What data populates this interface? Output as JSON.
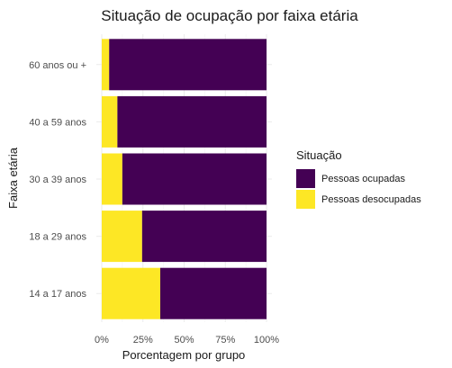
{
  "chart_data": {
    "type": "bar",
    "orientation": "horizontal",
    "stacked": "percent",
    "title": "Situação de ocupação por faixa etária",
    "xlabel": "Porcentagem por grupo",
    "ylabel": "Faixa etária",
    "xlim": [
      0,
      100
    ],
    "xticks": [
      "0%",
      "25%",
      "50%",
      "75%",
      "100%"
    ],
    "xtick_values": [
      0,
      25,
      50,
      75,
      100
    ],
    "categories": [
      "14 a 17 anos",
      "18 a 29 anos",
      "30 a 39 anos",
      "40 a 59 anos",
      "60 anos ou +"
    ],
    "series": [
      {
        "name": "Pessoas desocupadas",
        "color": "#FDE725",
        "values": [
          35.5,
          24.5,
          12.5,
          9.5,
          4.5
        ]
      },
      {
        "name": "Pessoas ocupadas",
        "color": "#440154",
        "values": [
          64.5,
          75.5,
          87.5,
          90.5,
          95.5
        ]
      }
    ],
    "legend": {
      "title": "Situação",
      "position": "right",
      "entries": [
        {
          "label": "Pessoas ocupadas",
          "color": "#440154"
        },
        {
          "label": "Pessoas desocupadas",
          "color": "#FDE725"
        }
      ]
    },
    "grid": true
  }
}
